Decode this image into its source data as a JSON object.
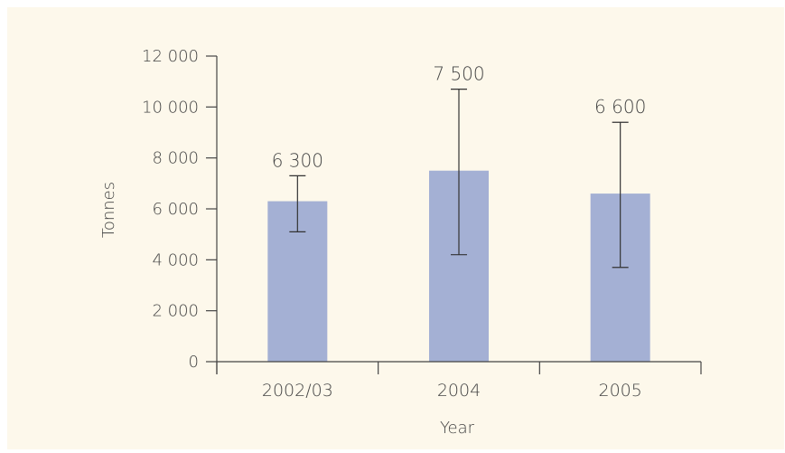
{
  "colors": {
    "background": "#fdf8eb",
    "bar": "#a4b0d4",
    "axis": "#444444",
    "error_bar": "#333333"
  },
  "chart_data": {
    "type": "bar",
    "title": "",
    "xlabel": "Year",
    "ylabel": "Tonnes",
    "categories": [
      "2002/03",
      "2004",
      "2005"
    ],
    "values": [
      6300,
      7500,
      6600
    ],
    "value_labels": [
      "6 300",
      "7 500",
      "6 600"
    ],
    "error_low": [
      5100,
      4200,
      3700
    ],
    "error_high": [
      7300,
      10700,
      9400
    ],
    "ylim": [
      0,
      12000
    ],
    "yticks": [
      0,
      2000,
      4000,
      6000,
      8000,
      10000,
      12000
    ],
    "ytick_labels": [
      "0",
      "2 000",
      "4 000",
      "6 000",
      "8 000",
      "10 000",
      "12 000"
    ],
    "grid": false,
    "legend": "none"
  }
}
